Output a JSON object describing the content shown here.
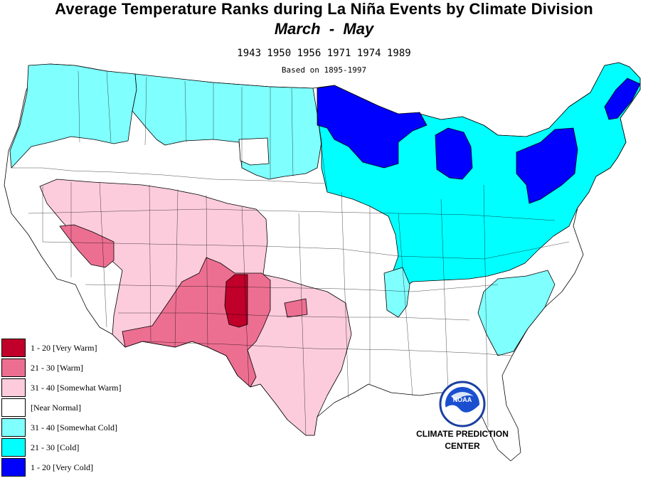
{
  "title": "Average Temperature Ranks during La  Niña Events by Climate Division",
  "subtitle": "March  -  May",
  "years": "1943 1950 1956 1971 1974 1989",
  "basis": "Based on 1895-1997",
  "legend": [
    {
      "label": "1 - 20 [Very Warm]",
      "color": "#c0002a"
    },
    {
      "label": "21 - 30 [Warm]",
      "color": "#ec6f91"
    },
    {
      "label": "31 - 40 [Somewhat Warm]",
      "color": "#fcccdc"
    },
    {
      "label": " [Near Normal]",
      "color": "#ffffff"
    },
    {
      "label": "31 - 40 [Somewhat Cold]",
      "color": "#80ffff"
    },
    {
      "label": "21 - 30 [Cold]",
      "color": "#00ffff"
    },
    {
      "label": "1 - 20 [Very Cold]",
      "color": "#0000ff"
    }
  ],
  "logo": {
    "icon": "noaa-logo-icon",
    "text": "NOAA"
  },
  "agency": {
    "line1": "CLIMATE PREDICTION",
    "line2": "CENTER"
  },
  "map_colors": {
    "very_warm": "#c0002a",
    "warm": "#ec6f91",
    "somewhat_warm": "#fcccdc",
    "near_normal": "#ffffff",
    "somewhat_cold": "#80ffff",
    "cold": "#00ffff",
    "very_cold": "#0000ff",
    "border": "#000000"
  }
}
